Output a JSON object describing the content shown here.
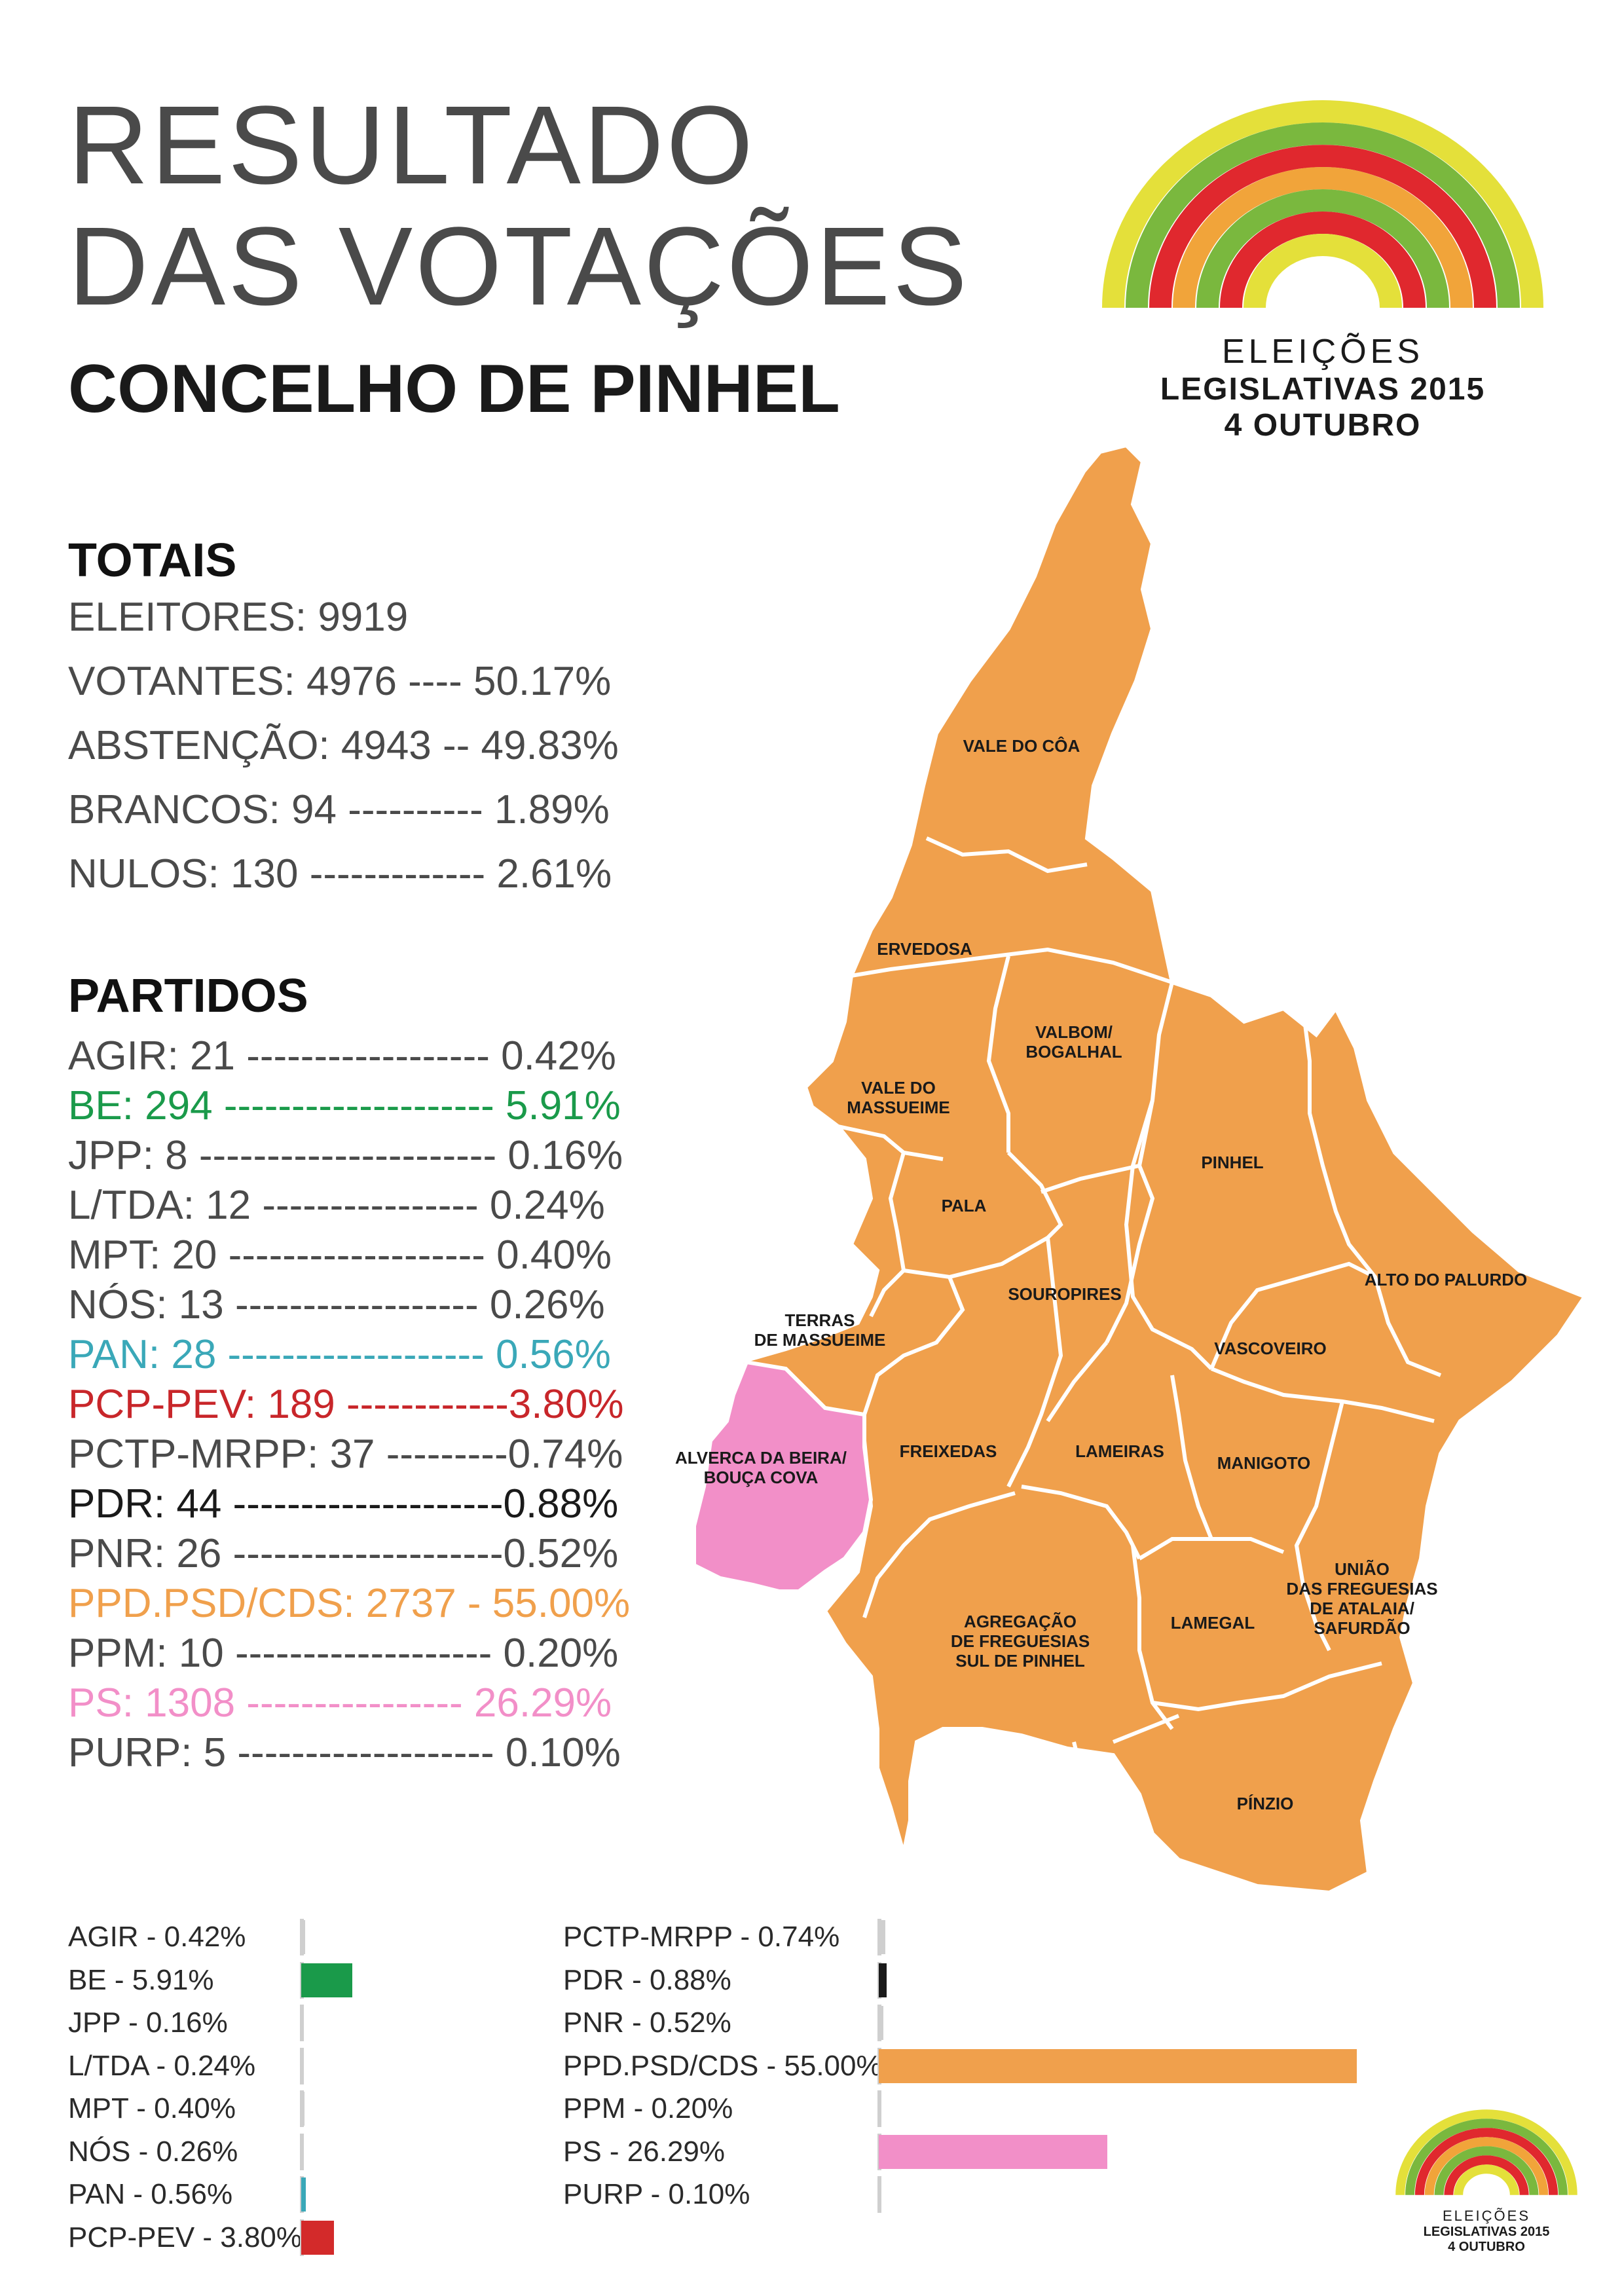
{
  "title_line1": "RESULTADO",
  "title_line2": "DAS VOTAÇÕES",
  "subtitle": "CONCELHO DE PINHEL",
  "logo": {
    "line1": "ELEIÇÕES",
    "line2": "LEGISLATIVAS 2015",
    "line3": "4 OUTUBRO"
  },
  "totais": {
    "heading": "TOTAIS",
    "lines": [
      "ELEITORES: 9919",
      "VOTANTES: 4976 ---- 50.17%",
      "ABSTENÇÃO: 4943 -- 49.83%",
      "BRANCOS: 94 ---------- 1.89%",
      "NULOS: 130 ------------- 2.61%"
    ]
  },
  "partidos": {
    "heading": "PARTIDOS",
    "lines": [
      {
        "text": "AGIR: 21 ------------------ 0.42%",
        "color": "#4a4a4a"
      },
      {
        "text": "BE: 294 -------------------- 5.91%",
        "color": "#1a9a4a"
      },
      {
        "text": "JPP: 8 ---------------------- 0.16%",
        "color": "#4a4a4a"
      },
      {
        "text": "L/TDA: 12 ---------------- 0.24%",
        "color": "#4a4a4a"
      },
      {
        "text": "MPT: 20 ------------------- 0.40%",
        "color": "#4a4a4a"
      },
      {
        "text": "NÓS: 13 ------------------ 0.26%",
        "color": "#4a4a4a"
      },
      {
        "text": "PAN: 28 ------------------- 0.56%",
        "color": "#3aa8b8"
      },
      {
        "text": "PCP-PEV: 189 ------------3.80%",
        "color": "#c8262a"
      },
      {
        "text": "PCTP-MRPP: 37 ---------0.74%",
        "color": "#4a4a4a"
      },
      {
        "text": "PDR: 44 --------------------0.88%",
        "color": "#1a1a1a"
      },
      {
        "text": "PNR: 26 --------------------0.52%",
        "color": "#4a4a4a"
      },
      {
        "text": "PPD.PSD/CDS: 2737 - 55.00%",
        "color": "#f0a04c"
      },
      {
        "text": "PPM: 10 ------------------- 0.20%",
        "color": "#4a4a4a"
      },
      {
        "text": "PS: 1308 ---------------- 26.29%",
        "color": "#f28fc8"
      },
      {
        "text": "PURP: 5 ------------------- 0.10%",
        "color": "#4a4a4a"
      }
    ]
  },
  "map_labels": [
    "VALE DO CÔA",
    "ERVEDOSA",
    "VALBOM/",
    "BOGALHAL",
    "VALE DO",
    "MASSUEIME",
    "PINHEL",
    "PALA",
    "SOUROPIRES",
    "ALTO DO PALURDO",
    "TERRAS",
    "DE MASSUEIME",
    "VASCOVEIRO",
    "ALVERCA DA BEIRA/",
    "BOUÇA COVA",
    "FREIXEDAS",
    "LAMEIRAS",
    "MANIGOTO",
    "UNIÃO",
    "DAS FREGUESIAS",
    "DE ATALAIA/",
    "SAFURDÃO",
    "AGREGAÇÃO",
    "DE FREGUESIAS",
    "SUL DE PINHEL",
    "LAMEGAL",
    "PÍNZIO"
  ],
  "colors": {
    "winner": "#f0a04c",
    "ps": "#f28fc8",
    "border": "#ffffff"
  },
  "chart_data": {
    "type": "bar",
    "orientation": "horizontal",
    "unit": "%",
    "categories": [
      "AGIR",
      "BE",
      "JPP",
      "L/TDA",
      "MPT",
      "NÓS",
      "PAN",
      "PCP-PEV",
      "PCTP-MRPP",
      "PDR",
      "PNR",
      "PPD.PSD/CDS",
      "PPM",
      "PS",
      "PURP"
    ],
    "values": [
      0.42,
      5.91,
      0.16,
      0.24,
      0.4,
      0.26,
      0.56,
      3.8,
      0.74,
      0.88,
      0.52,
      55.0,
      0.2,
      26.29,
      0.1
    ],
    "labels": [
      "AGIR - 0.42%",
      "BE - 5.91%",
      "JPP - 0.16%",
      "L/TDA - 0.24%",
      "MPT - 0.40%",
      "NÓS - 0.26%",
      "PAN - 0.56%",
      "PCP-PEV - 3.80%",
      "PCTP-MRPP - 0.74%",
      "PDR - 0.88%",
      "PNR - 0.52%",
      "PPD.PSD/CDS - 55.00%",
      "PPM - 0.20%",
      "PS - 26.29%",
      "PURP - 0.10%"
    ],
    "bar_colors": [
      "#cfcfcf",
      "#1a9a4a",
      "#cfcfcf",
      "#cfcfcf",
      "#cfcfcf",
      "#cfcfcf",
      "#3aa8b8",
      "#d32a2a",
      "#cfcfcf",
      "#1a1a1a",
      "#cfcfcf",
      "#f0a04c",
      "#cfcfcf",
      "#f28fc8",
      "#cfcfcf"
    ],
    "xlim": [
      0,
      55
    ]
  }
}
